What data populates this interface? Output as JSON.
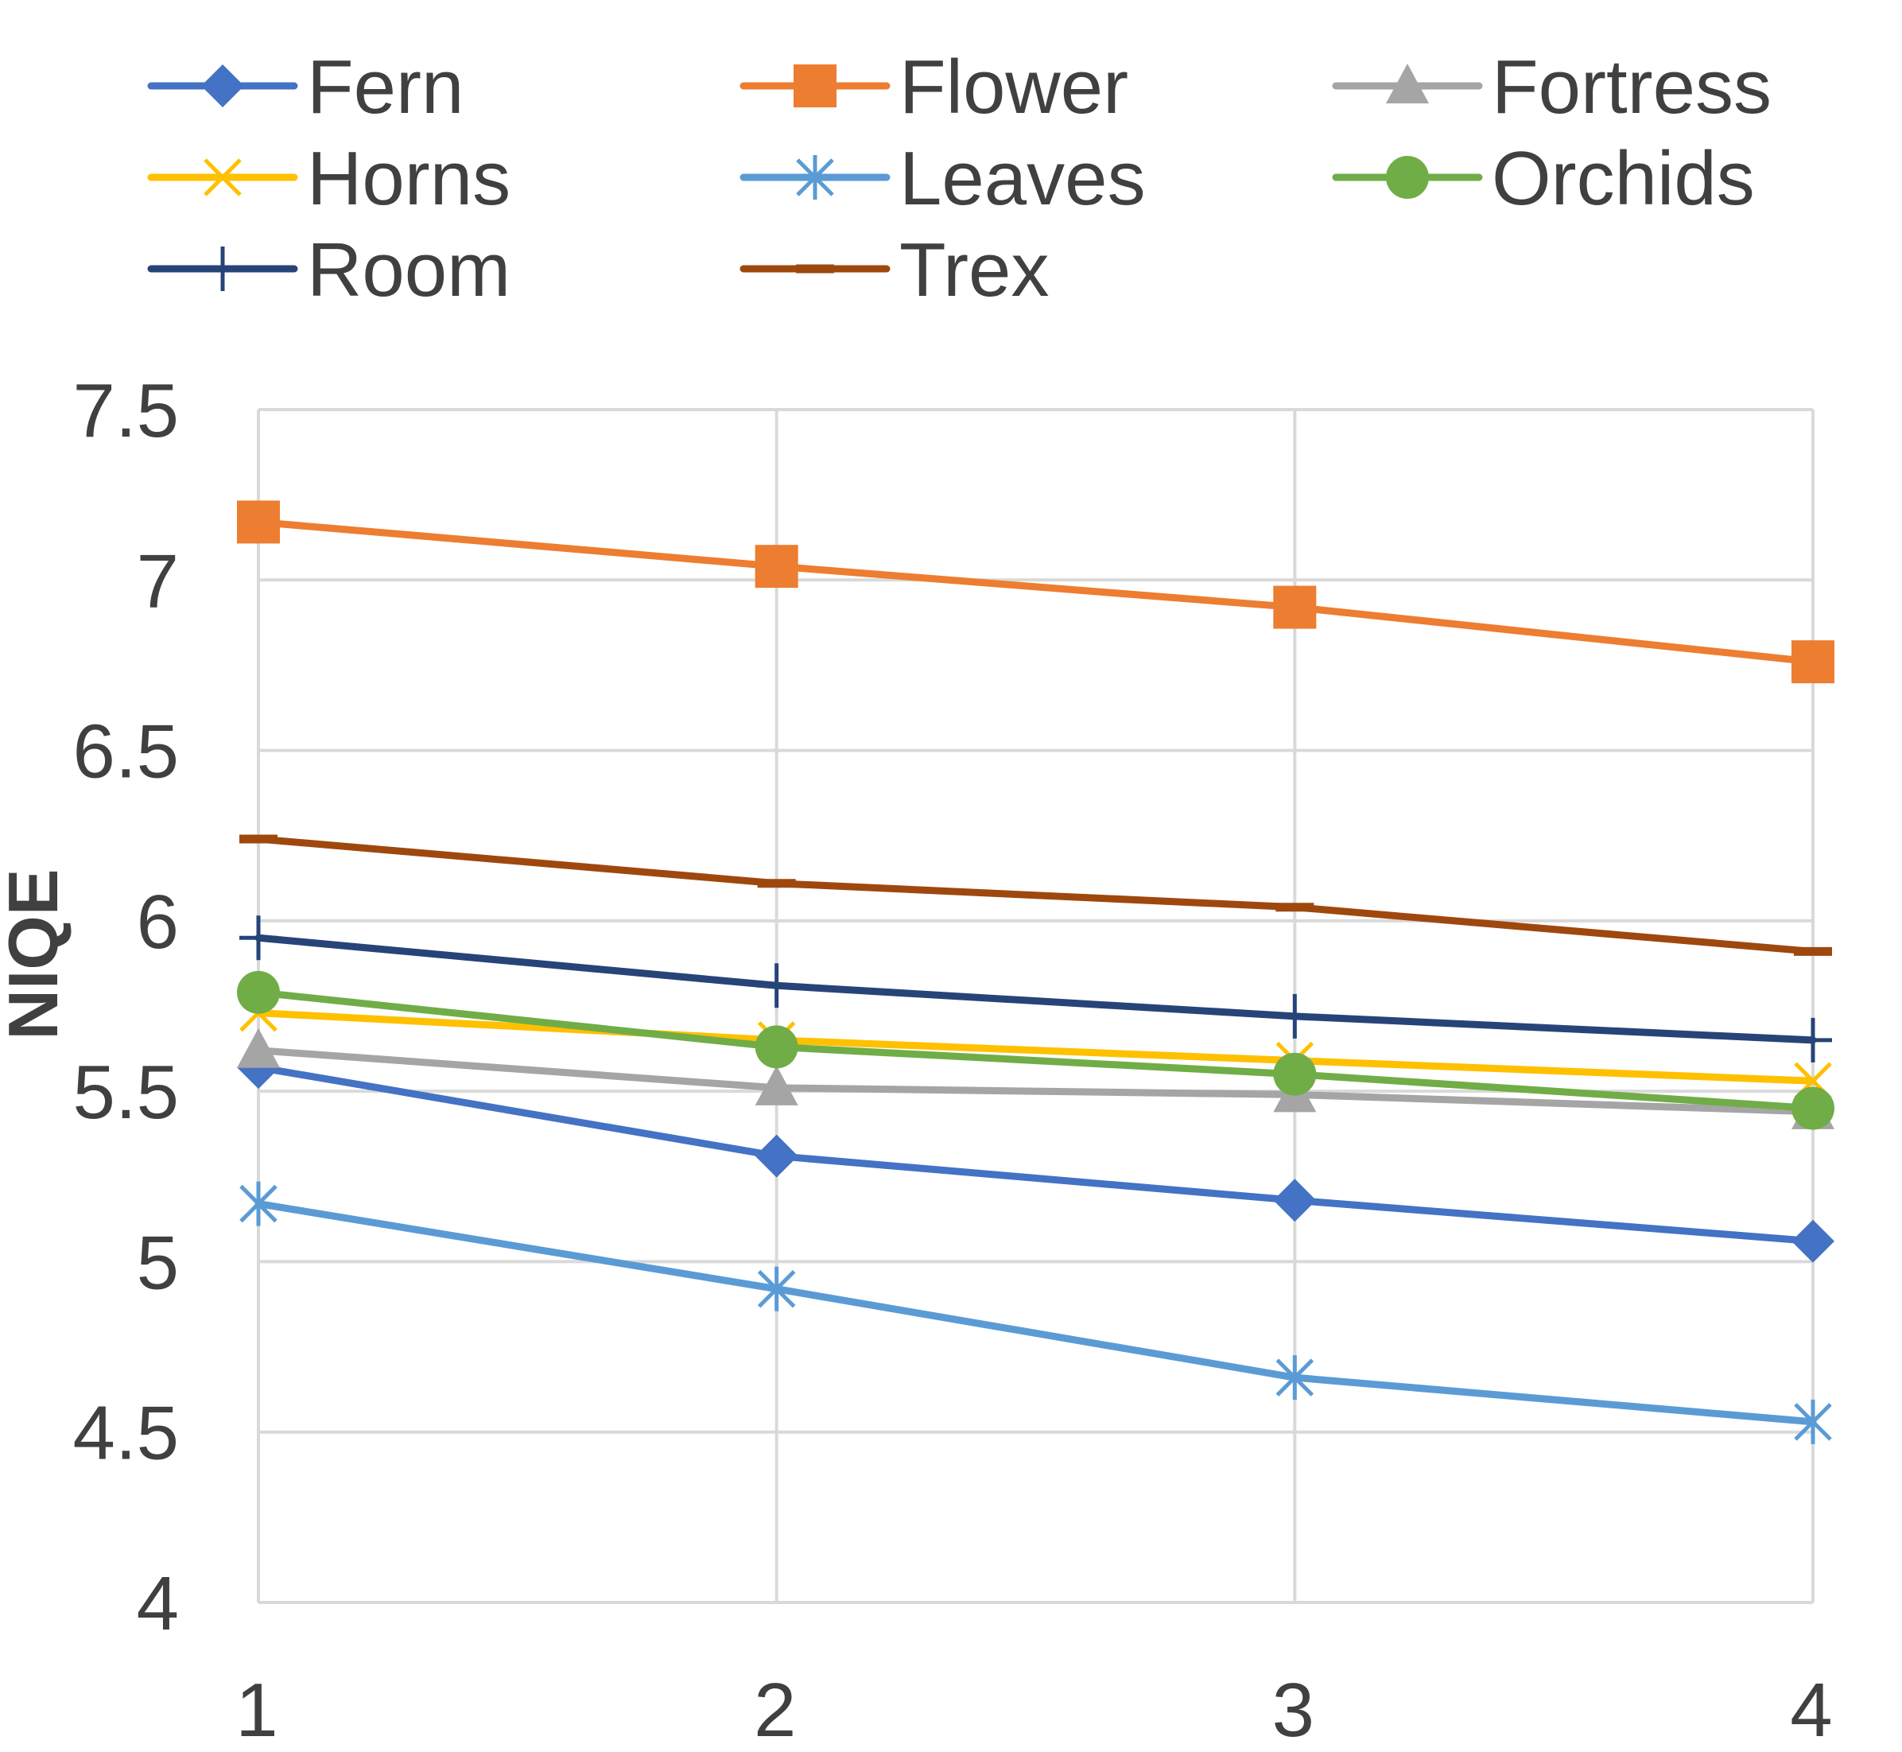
{
  "chart_data": {
    "type": "line",
    "title": "",
    "xlabel": "",
    "ylabel": "NIQE",
    "x": [
      1,
      2,
      3,
      4
    ],
    "x_tick_labels": [
      "1",
      "2",
      "3",
      "4"
    ],
    "ylim": [
      4,
      7.5
    ],
    "y_ticks": [
      4,
      4.5,
      5,
      5.5,
      6,
      6.5,
      7,
      7.5
    ],
    "y_tick_labels": [
      "4",
      "4.5",
      "5",
      "5.5",
      "6",
      "6.5",
      "7",
      "7.5"
    ],
    "grid": true,
    "legend_position": "top",
    "series": [
      {
        "name": "Fern",
        "color": "#4472C4",
        "marker": "diamond",
        "values": [
          5.57,
          5.31,
          5.18,
          5.06
        ]
      },
      {
        "name": "Flower",
        "color": "#ED7D31",
        "marker": "square",
        "values": [
          7.17,
          7.04,
          6.92,
          6.76
        ]
      },
      {
        "name": "Fortress",
        "color": "#A5A5A5",
        "marker": "triangle",
        "values": [
          5.62,
          5.51,
          5.49,
          5.44
        ]
      },
      {
        "name": "Horns",
        "color": "#FFC000",
        "marker": "x",
        "values": [
          5.73,
          5.65,
          5.59,
          5.53
        ]
      },
      {
        "name": "Leaves",
        "color": "#5B9BD5",
        "marker": "asterisk",
        "values": [
          5.17,
          4.92,
          4.66,
          4.53
        ]
      },
      {
        "name": "Orchids",
        "color": "#70AD47",
        "marker": "circle",
        "values": [
          5.79,
          5.63,
          5.55,
          5.45
        ]
      },
      {
        "name": "Room",
        "color": "#264478",
        "marker": "plus",
        "values": [
          5.95,
          5.81,
          5.72,
          5.65
        ]
      },
      {
        "name": "Trex",
        "color": "#9E480E",
        "marker": "dash",
        "values": [
          6.24,
          6.11,
          6.04,
          5.91
        ]
      }
    ]
  }
}
